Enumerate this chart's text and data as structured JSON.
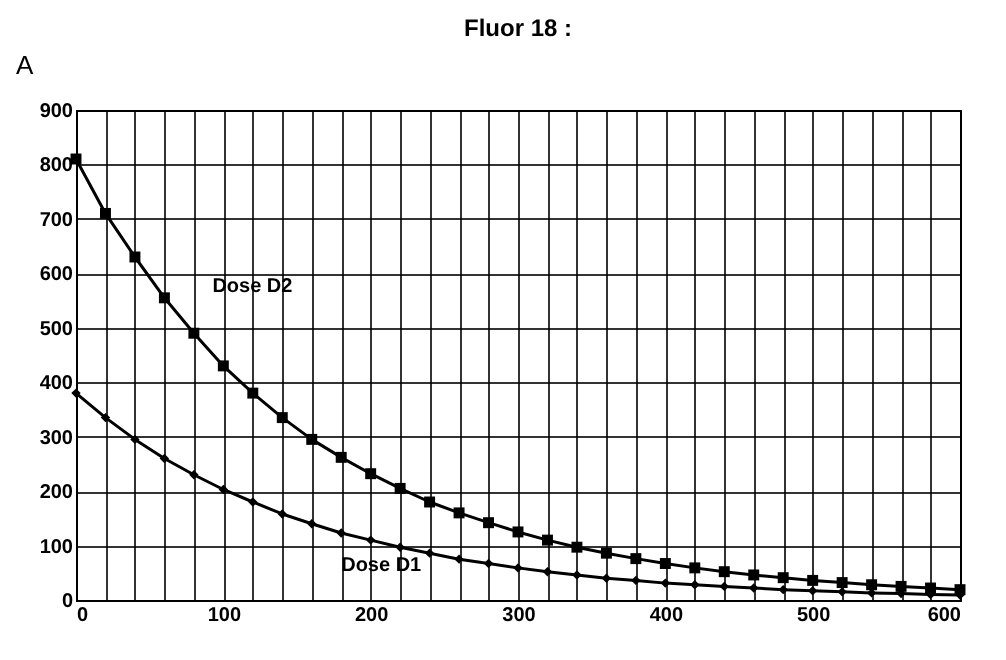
{
  "chart_data": {
    "type": "line",
    "title": "Fluor 18 :",
    "annotations": [
      "A"
    ],
    "x": [
      0,
      20,
      40,
      60,
      80,
      100,
      120,
      140,
      160,
      180,
      200,
      220,
      240,
      260,
      280,
      300,
      320,
      340,
      360,
      380,
      400,
      420,
      440,
      460,
      480,
      500,
      520,
      540,
      560,
      580,
      600
    ],
    "series": [
      {
        "name": "Dose D2",
        "color": "#000000",
        "marker": "square",
        "values": [
          810,
          710,
          630,
          555,
          490,
          430,
          380,
          335,
          295,
          262,
          232,
          205,
          180,
          160,
          142,
          125,
          110,
          97,
          86,
          76,
          67,
          59,
          52,
          46,
          41,
          36,
          32,
          28,
          25,
          22,
          19
        ]
      },
      {
        "name": "Dose D1",
        "color": "#000000",
        "marker": "diamond",
        "values": [
          380,
          335,
          295,
          260,
          230,
          203,
          180,
          158,
          140,
          123,
          110,
          97,
          86,
          75,
          67,
          59,
          52,
          46,
          40,
          36,
          31,
          28,
          25,
          22,
          19,
          17,
          15,
          13,
          12,
          10,
          9
        ]
      }
    ],
    "xlim": [
      0,
      600
    ],
    "xticks": [
      0,
      {
        "value": 20,
        "label": null
      },
      {
        "value": 40,
        "label": null
      },
      {
        "value": 60,
        "label": null
      },
      {
        "value": 80,
        "label": null
      },
      100,
      {
        "value": 120,
        "label": null
      },
      {
        "value": 140,
        "label": null
      },
      {
        "value": 160,
        "label": null
      },
      {
        "value": 180,
        "label": null
      },
      200,
      {
        "value": 220,
        "label": null
      },
      {
        "value": 240,
        "label": null
      },
      {
        "value": 260,
        "label": null
      },
      {
        "value": 280,
        "label": null
      },
      300,
      {
        "value": 320,
        "label": null
      },
      {
        "value": 340,
        "label": null
      },
      {
        "value": 360,
        "label": null
      },
      {
        "value": 380,
        "label": null
      },
      400,
      {
        "value": 420,
        "label": null
      },
      {
        "value": 440,
        "label": null
      },
      {
        "value": 460,
        "label": null
      },
      {
        "value": 480,
        "label": null
      },
      500,
      {
        "value": 520,
        "label": null
      },
      {
        "value": 540,
        "label": null
      },
      {
        "value": 560,
        "label": null
      },
      {
        "value": 580,
        "label": null
      },
      600
    ],
    "ylim": [
      0,
      900
    ],
    "yticks": [
      0,
      100,
      200,
      300,
      400,
      500,
      600,
      700,
      800,
      900
    ],
    "grid": true,
    "legend": false,
    "line_style": "solid"
  }
}
